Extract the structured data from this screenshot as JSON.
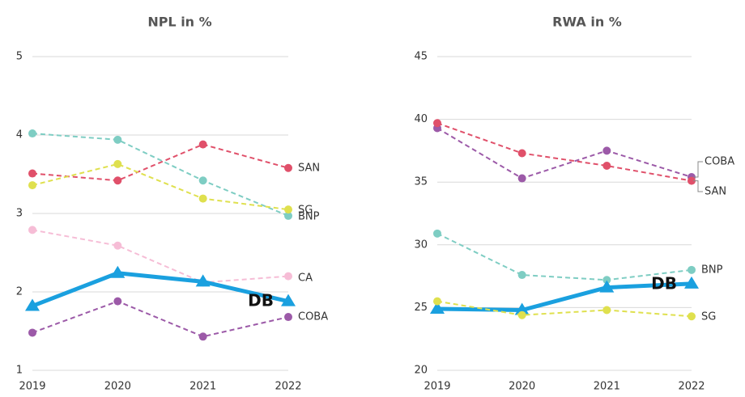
{
  "chart_data": [
    {
      "type": "line",
      "title": "NPL in %",
      "categories": [
        "2019",
        "2020",
        "2021",
        "2022"
      ],
      "ylim": [
        1,
        5
      ],
      "yticks": [
        1,
        2,
        3,
        4,
        5
      ],
      "grid": true,
      "series": [
        {
          "name": "BNP",
          "color": "#7ecdc3",
          "values": [
            4.02,
            3.94,
            3.42,
            2.97
          ]
        },
        {
          "name": "SAN",
          "color": "#e0506a",
          "values": [
            3.51,
            3.42,
            3.88,
            3.58
          ]
        },
        {
          "name": "SG",
          "color": "#dfe04e",
          "values": [
            3.36,
            3.63,
            3.19,
            3.05
          ]
        },
        {
          "name": "CA",
          "color": "#f6bdd6",
          "values": [
            2.79,
            2.59,
            2.12,
            2.2
          ]
        },
        {
          "name": "DB",
          "color": "#1aa0df",
          "values": [
            1.82,
            2.24,
            2.13,
            1.88
          ]
        },
        {
          "name": "COBA",
          "color": "#9c5aa8",
          "values": [
            1.48,
            1.88,
            1.43,
            1.68
          ]
        }
      ]
    },
    {
      "type": "line",
      "title": "RWA in %",
      "categories": [
        "2019",
        "2020",
        "2021",
        "2022"
      ],
      "ylim": [
        20,
        45
      ],
      "yticks": [
        20,
        25,
        30,
        35,
        40,
        45
      ],
      "grid": true,
      "series": [
        {
          "name": "COBA",
          "color": "#9c5aa8",
          "values": [
            39.3,
            35.3,
            37.5,
            35.4
          ]
        },
        {
          "name": "SAN",
          "color": "#e0506a",
          "values": [
            39.7,
            37.3,
            36.3,
            35.1
          ]
        },
        {
          "name": "BNP",
          "color": "#7ecdc3",
          "values": [
            30.9,
            27.6,
            27.2,
            28.0
          ]
        },
        {
          "name": "DB",
          "color": "#1aa0df",
          "values": [
            24.9,
            24.8,
            26.6,
            26.9
          ]
        },
        {
          "name": "SG",
          "color": "#dfe04e",
          "values": [
            25.5,
            24.4,
            24.8,
            24.3
          ]
        }
      ]
    }
  ]
}
